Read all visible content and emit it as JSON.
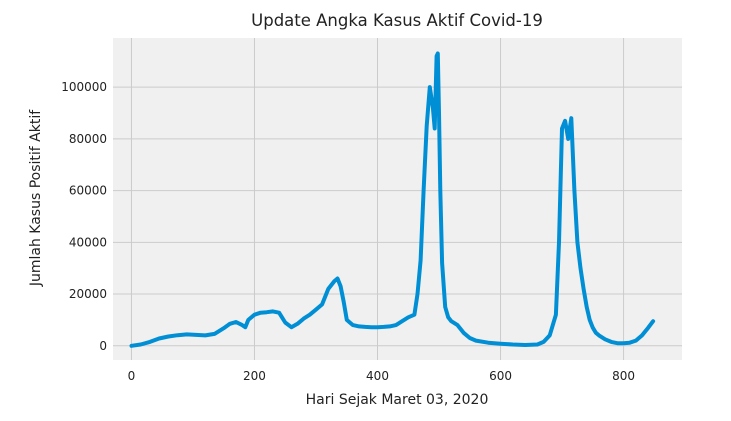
{
  "chart_data": {
    "type": "line",
    "title": "Update Angka Kasus Aktif Covid-19",
    "xlabel": "Hari Sejak Maret 03, 2020",
    "ylabel": "Jumlah Kasus Positif Aktif",
    "xlim": [
      -30,
      895
    ],
    "ylim": [
      -5500,
      119000
    ],
    "xticks": [
      0,
      200,
      400,
      600,
      800
    ],
    "yticks": [
      0,
      20000,
      40000,
      60000,
      80000,
      100000
    ],
    "grid": true,
    "colors": {
      "series": "#008fd5",
      "background": "#f0f0f0",
      "grid": "#cbcbcb"
    },
    "series": [
      {
        "name": "",
        "x": [
          0,
          15,
          30,
          45,
          60,
          75,
          90,
          105,
          120,
          135,
          150,
          160,
          170,
          180,
          185,
          190,
          200,
          210,
          220,
          230,
          240,
          250,
          260,
          270,
          280,
          290,
          300,
          310,
          320,
          330,
          335,
          340,
          345,
          350,
          355,
          360,
          370,
          380,
          390,
          400,
          410,
          420,
          430,
          440,
          450,
          460,
          465,
          470,
          475,
          480,
          485,
          490,
          493,
          496,
          498,
          500,
          502,
          505,
          510,
          515,
          520,
          530,
          540,
          550,
          560,
          580,
          600,
          620,
          640,
          660,
          670,
          680,
          690,
          695,
          700,
          705,
          710,
          715,
          720,
          725,
          730,
          735,
          740,
          745,
          750,
          755,
          760,
          770,
          780,
          790,
          800,
          810,
          820,
          830,
          840,
          848
        ],
        "y": [
          0,
          500,
          1500,
          2800,
          3600,
          4100,
          4400,
          4200,
          4000,
          4600,
          6800,
          8500,
          9200,
          8000,
          7200,
          10000,
          12000,
          12800,
          13000,
          13300,
          12800,
          9000,
          7200,
          8500,
          10500,
          12000,
          14000,
          16000,
          22000,
          25000,
          26000,
          23000,
          17000,
          10000,
          9000,
          8000,
          7500,
          7300,
          7200,
          7200,
          7300,
          7500,
          8000,
          9500,
          11000,
          12000,
          20000,
          33000,
          60000,
          85000,
          100000,
          92000,
          84000,
          112000,
          113000,
          90000,
          60000,
          32000,
          15000,
          11000,
          9500,
          8000,
          5000,
          3000,
          2000,
          1200,
          800,
          500,
          300,
          500,
          1500,
          4000,
          12000,
          40000,
          84000,
          87000,
          80000,
          88000,
          60000,
          40000,
          30000,
          22000,
          15000,
          10000,
          7000,
          5000,
          4000,
          2500,
          1500,
          1000,
          1000,
          1200,
          2000,
          4000,
          7000,
          9500
        ]
      }
    ]
  }
}
